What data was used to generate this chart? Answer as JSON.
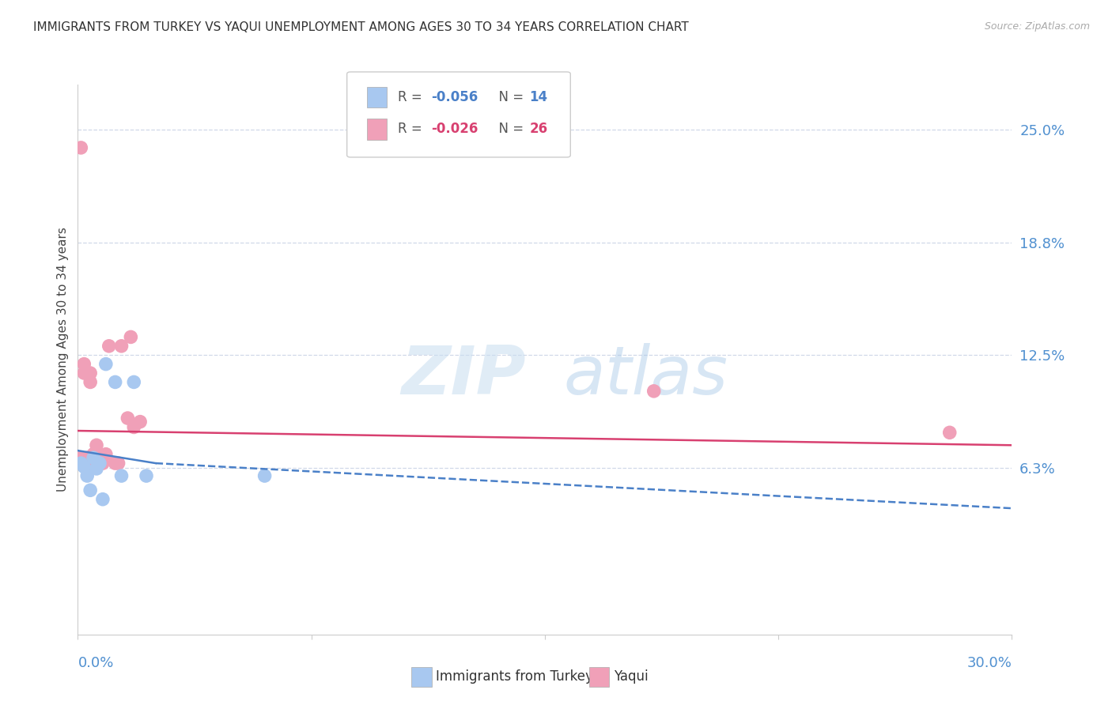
{
  "title": "IMMIGRANTS FROM TURKEY VS YAQUI UNEMPLOYMENT AMONG AGES 30 TO 34 YEARS CORRELATION CHART",
  "source": "Source: ZipAtlas.com",
  "ylabel": "Unemployment Among Ages 30 to 34 years",
  "yticks": [
    0.0,
    0.0625,
    0.125,
    0.1875,
    0.25
  ],
  "ytick_labels": [
    "",
    "6.3%",
    "12.5%",
    "18.8%",
    "25.0%"
  ],
  "xlim": [
    0.0,
    0.3
  ],
  "ylim": [
    -0.03,
    0.275
  ],
  "color_blue": "#a8c8f0",
  "color_pink": "#f0a0b8",
  "color_blue_trend": "#4a80c8",
  "color_pink_trend": "#d84070",
  "color_axis_label": "#5090d0",
  "color_grid": "#d0d8e8",
  "scatter_blue_x": [
    0.001,
    0.002,
    0.003,
    0.004,
    0.005,
    0.006,
    0.007,
    0.008,
    0.009,
    0.012,
    0.014,
    0.018,
    0.022,
    0.06
  ],
  "scatter_blue_y": [
    0.065,
    0.063,
    0.058,
    0.05,
    0.068,
    0.062,
    0.065,
    0.045,
    0.12,
    0.11,
    0.058,
    0.11,
    0.058,
    0.058
  ],
  "scatter_pink_x": [
    0.001,
    0.001,
    0.001,
    0.002,
    0.002,
    0.003,
    0.003,
    0.004,
    0.004,
    0.005,
    0.005,
    0.006,
    0.006,
    0.007,
    0.008,
    0.009,
    0.01,
    0.012,
    0.013,
    0.014,
    0.016,
    0.017,
    0.018,
    0.02,
    0.185,
    0.28
  ],
  "scatter_pink_y": [
    0.24,
    0.065,
    0.068,
    0.115,
    0.12,
    0.063,
    0.068,
    0.11,
    0.115,
    0.07,
    0.065,
    0.072,
    0.075,
    0.065,
    0.065,
    0.07,
    0.13,
    0.065,
    0.065,
    0.13,
    0.09,
    0.135,
    0.085,
    0.088,
    0.105,
    0.082
  ],
  "trend_blue_x0": 0.0,
  "trend_blue_x1": 0.025,
  "trend_blue_y0": 0.072,
  "trend_blue_y1": 0.065,
  "trend_blue_dash_x0": 0.025,
  "trend_blue_dash_x1": 0.3,
  "trend_blue_dash_y1": 0.04,
  "trend_pink_x0": 0.0,
  "trend_pink_x1": 0.3,
  "trend_pink_y0": 0.083,
  "trend_pink_y1": 0.075,
  "watermark_zip": "ZIP",
  "watermark_atlas": "atlas",
  "background_color": "#ffffff"
}
